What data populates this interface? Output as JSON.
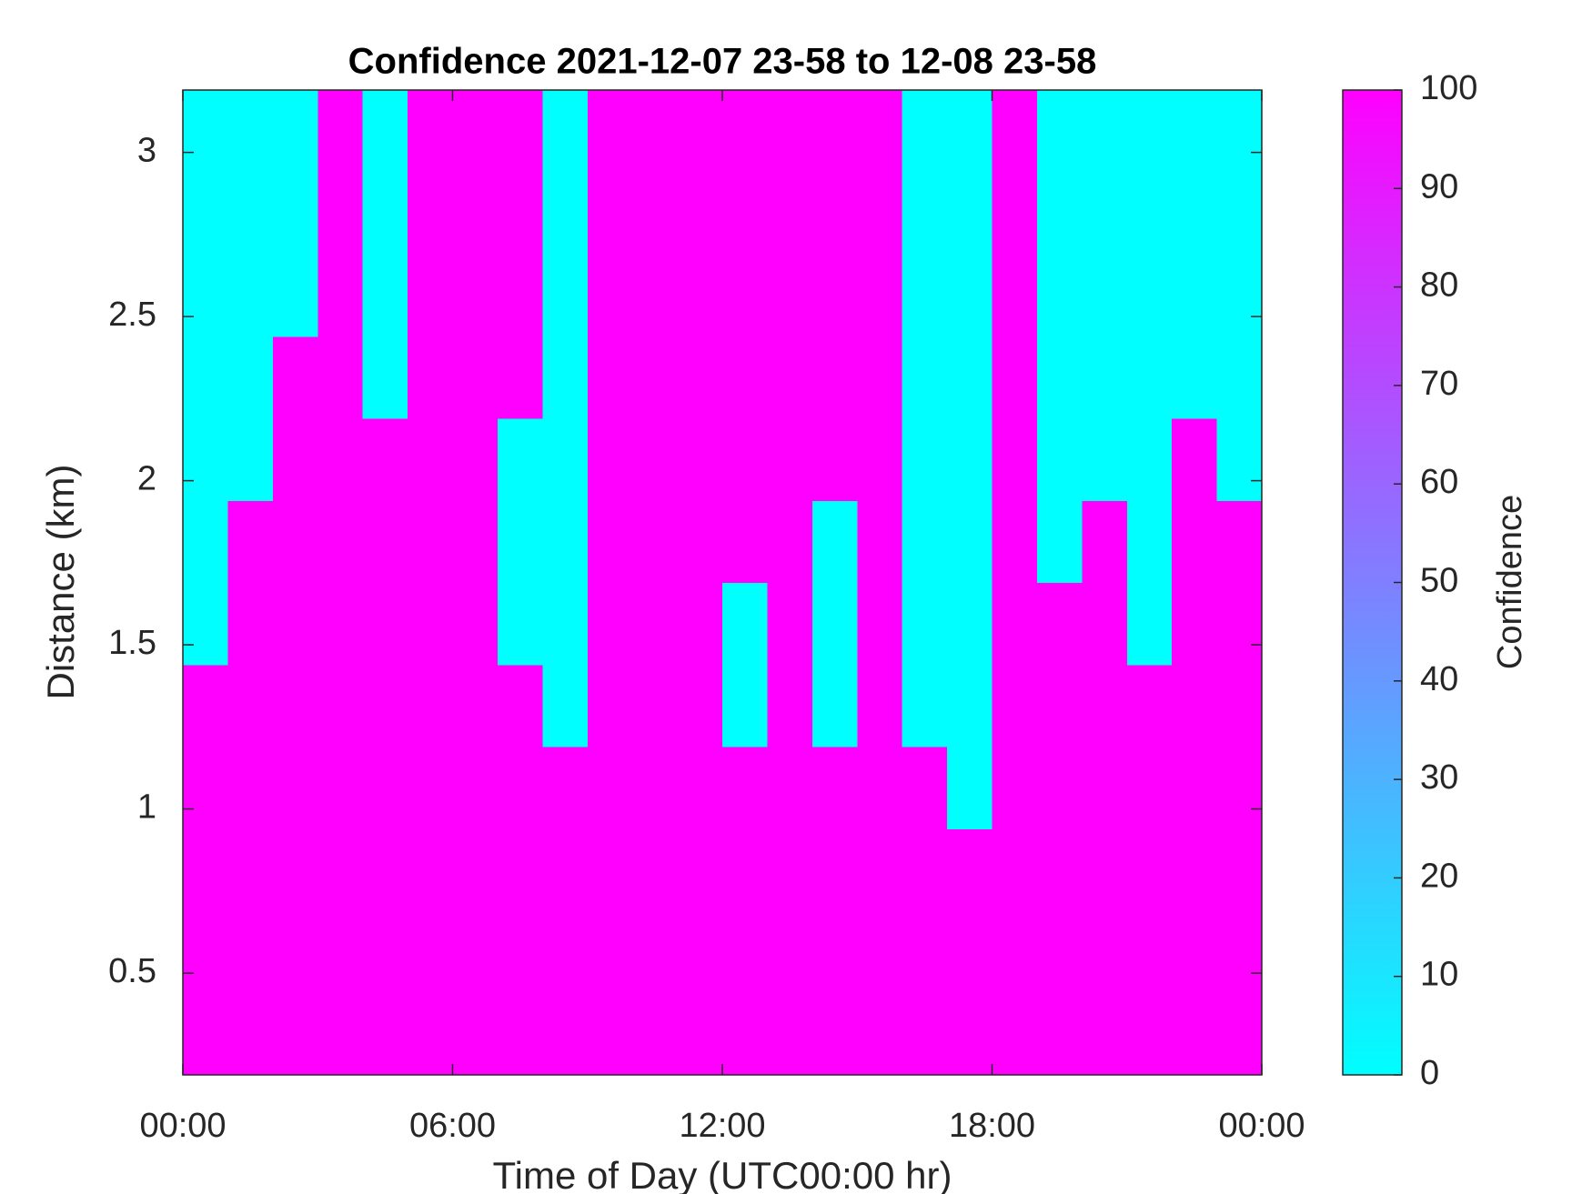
{
  "chart_data": {
    "type": "heatmap",
    "title": "Confidence 2021-12-07 23-58 to 12-08 23-58",
    "xlabel": "Time of Day (UTC00:00 hr)",
    "ylabel": "Distance (km)",
    "colorbar_label": "Confidence",
    "colormap": [
      "#00ffff",
      "#ff00ff"
    ],
    "clim": [
      0,
      100
    ],
    "cticks": [
      0,
      10,
      20,
      30,
      40,
      50,
      60,
      70,
      80,
      90,
      100
    ],
    "xlim": [
      0,
      24
    ],
    "xticks": [
      {
        "value": 0,
        "label": "00:00"
      },
      {
        "value": 6,
        "label": "06:00"
      },
      {
        "value": 12,
        "label": "12:00"
      },
      {
        "value": 18,
        "label": "18:00"
      },
      {
        "value": 24,
        "label": "00:00"
      }
    ],
    "ylim": [
      0.19,
      3.19
    ],
    "yticks": [
      0.5,
      1,
      1.5,
      2,
      2.5,
      3
    ],
    "grid": false,
    "x": [
      0.5,
      1.5,
      2.5,
      3.5,
      4.5,
      5.5,
      6.5,
      7.5,
      8.5,
      9.5,
      10.5,
      11.5,
      12.5,
      13.5,
      14.5,
      15.5,
      16.5,
      17.5,
      18.5,
      19.5,
      20.5,
      21.5,
      22.5,
      23.5
    ],
    "y": [
      0.315,
      0.565,
      0.815,
      1.065,
      1.315,
      1.565,
      1.815,
      2.065,
      2.315,
      2.565,
      2.815,
      3.065
    ],
    "z": [
      [
        100,
        100,
        100,
        100,
        100,
        100,
        100,
        100,
        100,
        100,
        100,
        100,
        100,
        100,
        100,
        100,
        100,
        100,
        100,
        100,
        100,
        100,
        100,
        100
      ],
      [
        100,
        100,
        100,
        100,
        100,
        100,
        100,
        100,
        100,
        100,
        100,
        100,
        100,
        100,
        100,
        100,
        100,
        100,
        100,
        100,
        100,
        100,
        100,
        100
      ],
      [
        100,
        100,
        100,
        100,
        100,
        100,
        100,
        100,
        100,
        100,
        100,
        100,
        100,
        100,
        100,
        100,
        100,
        100,
        100,
        100,
        100,
        100,
        100,
        100
      ],
      [
        100,
        100,
        100,
        100,
        100,
        100,
        100,
        100,
        100,
        100,
        100,
        100,
        100,
        100,
        100,
        100,
        100,
        0,
        100,
        100,
        100,
        100,
        100,
        100
      ],
      [
        100,
        100,
        100,
        100,
        100,
        100,
        100,
        100,
        0,
        100,
        100,
        100,
        0,
        100,
        0,
        100,
        0,
        0,
        100,
        100,
        100,
        100,
        100,
        100
      ],
      [
        0,
        100,
        100,
        100,
        100,
        100,
        100,
        0,
        0,
        100,
        100,
        100,
        0,
        100,
        0,
        100,
        0,
        0,
        100,
        100,
        100,
        0,
        100,
        100
      ],
      [
        0,
        100,
        100,
        100,
        100,
        100,
        100,
        0,
        0,
        100,
        100,
        100,
        100,
        100,
        0,
        100,
        0,
        0,
        100,
        0,
        100,
        0,
        100,
        100
      ],
      [
        0,
        0,
        100,
        100,
        100,
        100,
        100,
        0,
        0,
        100,
        100,
        100,
        100,
        100,
        100,
        100,
        0,
        0,
        100,
        0,
        0,
        0,
        100,
        0
      ],
      [
        0,
        0,
        100,
        100,
        0,
        100,
        100,
        100,
        0,
        100,
        100,
        100,
        100,
        100,
        100,
        100,
        0,
        0,
        100,
        0,
        0,
        0,
        0,
        0
      ],
      [
        0,
        0,
        0,
        100,
        0,
        100,
        100,
        100,
        0,
        100,
        100,
        100,
        100,
        100,
        100,
        100,
        0,
        0,
        100,
        0,
        0,
        0,
        0,
        0
      ],
      [
        0,
        0,
        0,
        100,
        0,
        100,
        100,
        100,
        0,
        100,
        100,
        100,
        100,
        100,
        100,
        100,
        0,
        0,
        100,
        0,
        0,
        0,
        0,
        0
      ],
      [
        0,
        0,
        0,
        100,
        0,
        100,
        100,
        100,
        0,
        100,
        100,
        100,
        100,
        100,
        100,
        100,
        0,
        0,
        100,
        0,
        0,
        0,
        0,
        0
      ]
    ]
  }
}
